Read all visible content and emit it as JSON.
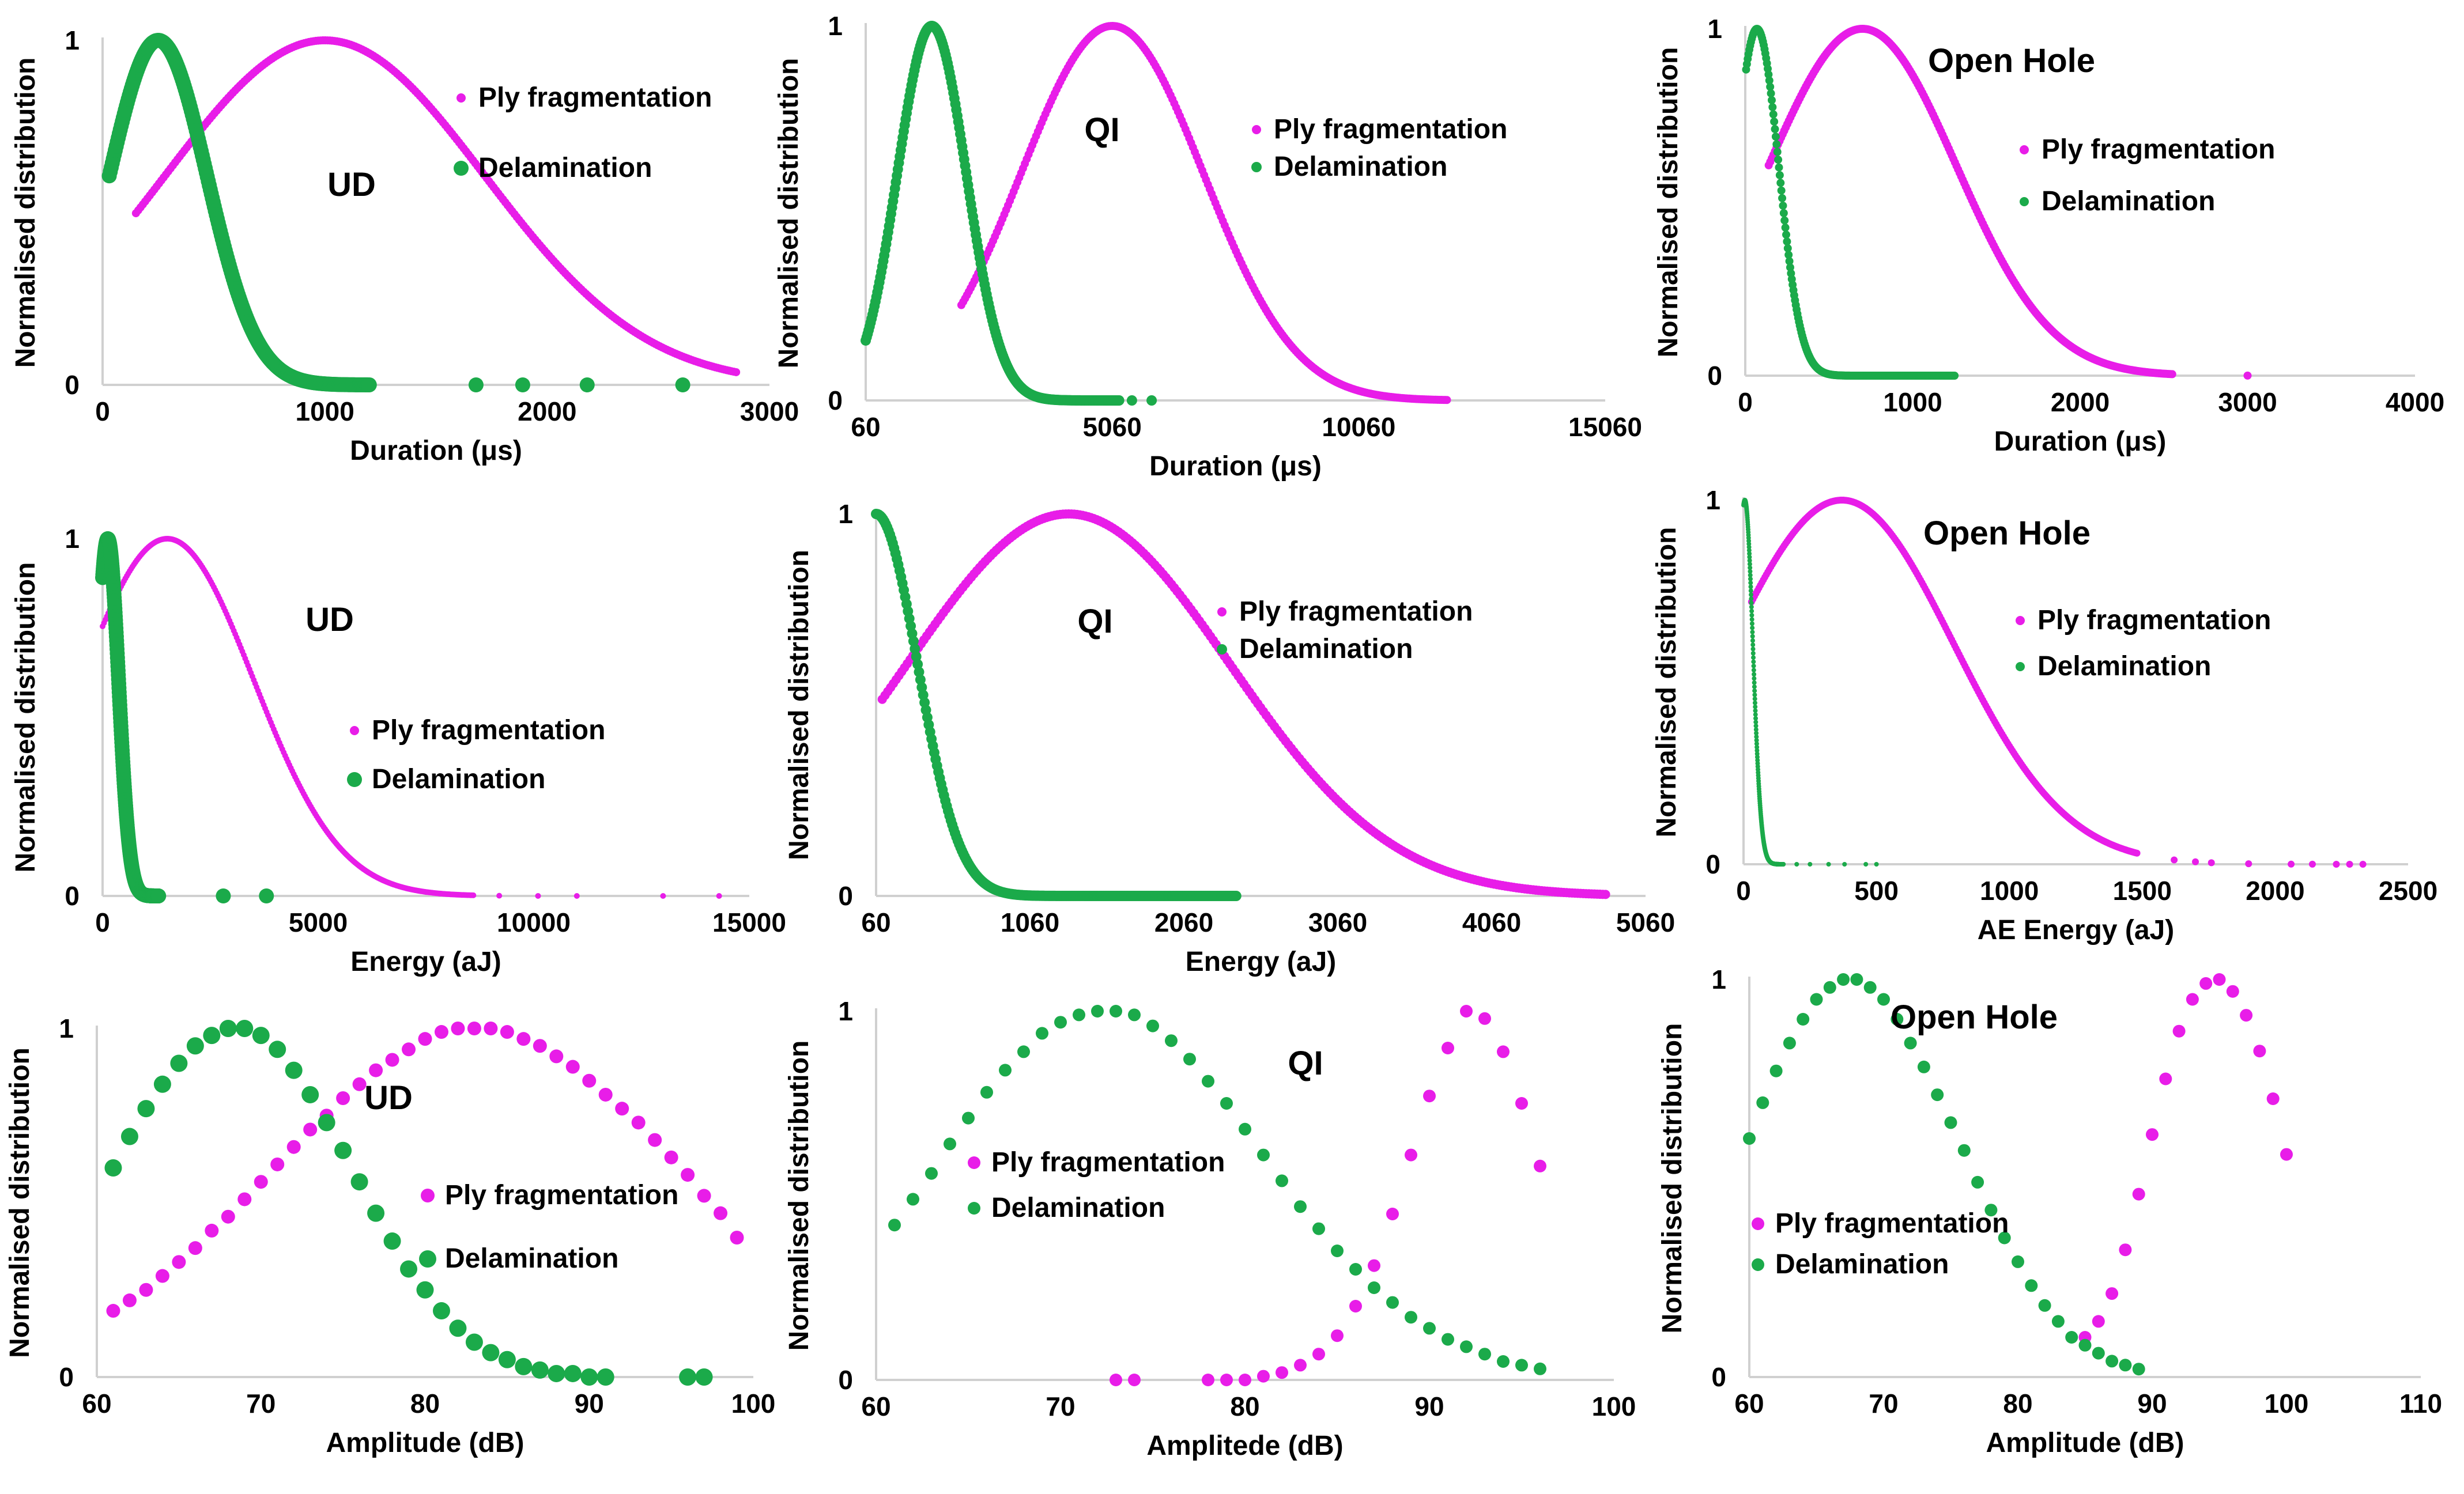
{
  "colors": {
    "ply": "#E81DE8",
    "delam": "#1BAA4A"
  },
  "chart_data": [
    {
      "type": "scatter",
      "annotation": "UD",
      "xlabel": "Duration (μs)",
      "ylabel": "Normalised distribution",
      "xlim": [
        0,
        3000
      ],
      "xticks": [
        "0",
        "1000",
        "2000",
        "3000"
      ],
      "xtick_values": [
        0,
        1000,
        2000,
        3000
      ],
      "ylim": [
        0,
        1
      ],
      "yticks": [
        "0",
        "1"
      ],
      "legend": [
        "Ply fragmentation",
        "Delamination"
      ],
      "series": [
        {
          "name": "Ply fragmentation",
          "kind": "gauss",
          "mu": 1000,
          "sigma": 720,
          "xmin": 150,
          "xmax": 2850
        },
        {
          "name": "Delamination",
          "kind": "gauss",
          "mu": 250,
          "sigma": 220,
          "xmin": 30,
          "xmax": 1200,
          "extra_x": [
            1680,
            1890,
            2180,
            2610
          ]
        }
      ]
    },
    {
      "type": "scatter",
      "annotation": "QI",
      "xlabel": "Duration (μs)",
      "ylabel": "Normalised distribution",
      "xlim": [
        60,
        15060
      ],
      "xticks": [
        "60",
        "5060",
        "10060",
        "15060"
      ],
      "xtick_values": [
        60,
        5060,
        10060,
        15060
      ],
      "ylim": [
        0,
        1
      ],
      "yticks": [
        "0",
        "1"
      ],
      "legend": [
        "Ply fragmentation",
        "Delamination"
      ],
      "series": [
        {
          "name": "Ply fragmentation",
          "kind": "gauss",
          "mu": 5060,
          "sigma": 1850,
          "xmin": 2000,
          "xmax": 11850
        },
        {
          "name": "Delamination",
          "kind": "gauss",
          "mu": 1400,
          "sigma": 700,
          "xmin": 60,
          "xmax": 5200,
          "extra_x": [
            5460,
            5860
          ]
        }
      ]
    },
    {
      "type": "scatter",
      "annotation": "Open Hole",
      "xlabel": "Duration (μs)",
      "ylabel": "Normalised distribution",
      "xlim": [
        0,
        4000
      ],
      "xticks": [
        "0",
        "1000",
        "2000",
        "3000",
        "4000"
      ],
      "xtick_values": [
        0,
        1000,
        2000,
        3000,
        4000
      ],
      "ylim": [
        0,
        1
      ],
      "yticks": [
        "0",
        "1"
      ],
      "legend": [
        "Ply fragmentation",
        "Delamination"
      ],
      "series": [
        {
          "name": "Ply fragmentation",
          "kind": "gauss",
          "mu": 700,
          "sigma": 560,
          "xmin": 140,
          "xmax": 2550,
          "extra_x": [
            3000
          ]
        },
        {
          "name": "Delamination",
          "kind": "gauss",
          "mu": 70,
          "sigma": 130,
          "xmin": 5,
          "xmax": 1250
        }
      ]
    },
    {
      "type": "scatter",
      "annotation": "UD",
      "xlabel": "Energy (aJ)",
      "ylabel": "Normalised distribution",
      "xlim": [
        0,
        15000
      ],
      "xticks": [
        "0",
        "5000",
        "10000",
        "15000"
      ],
      "xtick_values": [
        0,
        5000,
        10000,
        15000
      ],
      "ylim": [
        0,
        1
      ],
      "yticks": [
        "0",
        "1"
      ],
      "legend": [
        "Ply fragmentation",
        "Delamination"
      ],
      "series": [
        {
          "name": "Ply fragmentation",
          "kind": "gauss",
          "mu": 1500,
          "sigma": 2000,
          "xmin": 0,
          "xmax": 8600,
          "extra_x": [
            9200,
            10100,
            11000,
            13000,
            14300
          ]
        },
        {
          "name": "Delamination",
          "kind": "gauss",
          "mu": 120,
          "sigma": 250,
          "xmin": 0,
          "xmax": 1300,
          "extra_x": [
            2800,
            3800
          ]
        }
      ]
    },
    {
      "type": "scatter",
      "annotation": "QI",
      "xlabel": "Energy (aJ)",
      "ylabel": "Normalised distribution",
      "xlim": [
        60,
        5060
      ],
      "xticks": [
        "60",
        "1060",
        "2060",
        "3060",
        "4060",
        "5060"
      ],
      "xtick_values": [
        60,
        1060,
        2060,
        3060,
        4060,
        5060
      ],
      "ylim": [
        0,
        1
      ],
      "yticks": [
        "0",
        "1"
      ],
      "legend": [
        "Ply fragmentation",
        "Delamination"
      ],
      "series": [
        {
          "name": "Ply fragmentation",
          "kind": "gauss",
          "mu": 1310,
          "sigma": 1050,
          "xmin": 100,
          "xmax": 4800
        },
        {
          "name": "Delamination",
          "kind": "gauss",
          "mu": 60,
          "sigma": 270,
          "xmin": 60,
          "xmax": 2400
        }
      ]
    },
    {
      "type": "scatter",
      "annotation": "Open Hole",
      "xlabel": "AE Energy (aJ)",
      "ylabel": "Normalised distribution",
      "xlim": [
        0,
        2500
      ],
      "xticks": [
        "0",
        "500",
        "1000",
        "1500",
        "2000",
        "2500"
      ],
      "xtick_values": [
        0,
        500,
        1000,
        1500,
        2000,
        2500
      ],
      "ylim": [
        0,
        1
      ],
      "yticks": [
        "0",
        "1"
      ],
      "legend": [
        "Ply fragmentation",
        "Delamination"
      ],
      "series": [
        {
          "name": "Ply fragmentation",
          "kind": "gauss",
          "mu": 370,
          "sigma": 420,
          "xmin": 30,
          "xmax": 1480,
          "extra_x": [
            1620,
            1700,
            1760,
            1900,
            2060,
            2140,
            2230,
            2280,
            2330
          ]
        },
        {
          "name": "Delamination",
          "kind": "gauss",
          "mu": 5,
          "sigma": 30,
          "xmin": 0,
          "xmax": 150,
          "extra_x": [
            200,
            250,
            320,
            380,
            460,
            500
          ]
        }
      ]
    },
    {
      "type": "scatter",
      "annotation": "UD",
      "xlabel": "Amplitude (dB)",
      "ylabel": "Normalised distribution",
      "xlim": [
        60,
        100
      ],
      "xticks": [
        "60",
        "70",
        "80",
        "90",
        "100"
      ],
      "xtick_values": [
        60,
        70,
        80,
        90,
        100
      ],
      "ylim": [
        0,
        1
      ],
      "yticks": [
        "0",
        "1"
      ],
      "legend": [
        "Ply fragmentation",
        "Delamination"
      ],
      "series": [
        {
          "name": "Ply fragmentation",
          "kind": "points",
          "x": [
            61,
            62,
            63,
            64,
            65,
            66,
            67,
            68,
            69,
            70,
            71,
            72,
            73,
            74,
            75,
            76,
            77,
            78,
            79,
            80,
            81,
            82,
            83,
            84,
            85,
            86,
            87,
            88,
            89,
            90,
            91,
            92,
            93,
            94,
            95,
            96,
            97,
            98,
            99
          ],
          "y": [
            0.19,
            0.22,
            0.25,
            0.29,
            0.33,
            0.37,
            0.42,
            0.46,
            0.51,
            0.56,
            0.61,
            0.66,
            0.71,
            0.75,
            0.8,
            0.84,
            0.88,
            0.91,
            0.94,
            0.97,
            0.99,
            1.0,
            1.0,
            1.0,
            0.99,
            0.97,
            0.95,
            0.92,
            0.89,
            0.85,
            0.81,
            0.77,
            0.73,
            0.68,
            0.63,
            0.58,
            0.52,
            0.47,
            0.4
          ]
        },
        {
          "name": "Delamination",
          "kind": "points",
          "x": [
            61,
            62,
            63,
            64,
            65,
            66,
            67,
            68,
            69,
            70,
            71,
            72,
            73,
            74,
            75,
            76,
            77,
            78,
            79,
            80,
            81,
            82,
            83,
            84,
            85,
            86,
            87,
            88,
            89,
            90,
            91,
            96,
            97
          ],
          "y": [
            0.6,
            0.69,
            0.77,
            0.84,
            0.9,
            0.95,
            0.98,
            1.0,
            1.0,
            0.98,
            0.94,
            0.88,
            0.81,
            0.73,
            0.65,
            0.56,
            0.47,
            0.39,
            0.31,
            0.25,
            0.19,
            0.14,
            0.1,
            0.07,
            0.05,
            0.03,
            0.02,
            0.01,
            0.01,
            0.0,
            0.0,
            0.0,
            0.0
          ]
        }
      ]
    },
    {
      "type": "scatter",
      "annotation": "QI",
      "xlabel": "Amplitede (dB)",
      "ylabel": "Normalised distribution",
      "xlim": [
        60,
        100
      ],
      "xticks": [
        "60",
        "70",
        "80",
        "90",
        "100"
      ],
      "xtick_values": [
        60,
        70,
        80,
        90,
        100
      ],
      "ylim": [
        0,
        1
      ],
      "yticks": [
        "0",
        "1"
      ],
      "legend": [
        "Ply fragmentation",
        "Delamination"
      ],
      "series": [
        {
          "name": "Ply fragmentation",
          "kind": "points",
          "x": [
            73,
            74,
            78,
            79,
            80,
            81,
            82,
            83,
            84,
            85,
            86,
            87,
            88,
            89,
            90,
            91,
            92,
            93,
            94,
            95,
            96
          ],
          "y": [
            0.0,
            0.0,
            0.0,
            0.0,
            0.0,
            0.01,
            0.02,
            0.04,
            0.07,
            0.12,
            0.2,
            0.31,
            0.45,
            0.61,
            0.77,
            0.9,
            1.0,
            0.98,
            0.89,
            0.75,
            0.58
          ]
        },
        {
          "name": "Delamination",
          "kind": "points",
          "x": [
            61,
            62,
            63,
            64,
            65,
            66,
            67,
            68,
            69,
            70,
            71,
            72,
            73,
            74,
            75,
            76,
            77,
            78,
            79,
            80,
            81,
            82,
            83,
            84,
            85,
            86,
            87,
            88,
            89,
            90,
            91,
            92,
            93,
            94,
            95,
            96
          ],
          "y": [
            0.42,
            0.49,
            0.56,
            0.64,
            0.71,
            0.78,
            0.84,
            0.89,
            0.94,
            0.97,
            0.99,
            1.0,
            1.0,
            0.99,
            0.96,
            0.92,
            0.87,
            0.81,
            0.75,
            0.68,
            0.61,
            0.54,
            0.47,
            0.41,
            0.35,
            0.3,
            0.25,
            0.21,
            0.17,
            0.14,
            0.11,
            0.09,
            0.07,
            0.05,
            0.04,
            0.03
          ]
        }
      ]
    },
    {
      "type": "scatter",
      "annotation": "Open Hole",
      "xlabel": "Amplitude (dB)",
      "ylabel": "Normalised distribution",
      "xlim": [
        60,
        110
      ],
      "xticks": [
        "60",
        "70",
        "80",
        "90",
        "100",
        "110"
      ],
      "xtick_values": [
        60,
        70,
        80,
        90,
        100,
        110
      ],
      "ylim": [
        0,
        1
      ],
      "yticks": [
        "0",
        "1"
      ],
      "legend": [
        "Ply fragmentation",
        "Delamination"
      ],
      "series": [
        {
          "name": "Ply fragmentation",
          "kind": "points",
          "x": [
            85,
            86,
            87,
            88,
            89,
            90,
            91,
            92,
            93,
            94,
            95,
            96,
            97,
            98,
            99,
            100
          ],
          "y": [
            0.1,
            0.14,
            0.21,
            0.32,
            0.46,
            0.61,
            0.75,
            0.87,
            0.95,
            0.99,
            1.0,
            0.97,
            0.91,
            0.82,
            0.7,
            0.56
          ]
        },
        {
          "name": "Delamination",
          "kind": "points",
          "x": [
            60,
            61,
            62,
            63,
            64,
            65,
            66,
            67,
            68,
            69,
            70,
            71,
            72,
            73,
            74,
            75,
            76,
            77,
            78,
            79,
            80,
            81,
            82,
            83,
            84,
            85,
            86,
            87,
            88,
            89
          ],
          "y": [
            0.6,
            0.69,
            0.77,
            0.84,
            0.9,
            0.95,
            0.98,
            1.0,
            1.0,
            0.98,
            0.95,
            0.9,
            0.84,
            0.78,
            0.71,
            0.64,
            0.57,
            0.49,
            0.42,
            0.35,
            0.29,
            0.23,
            0.18,
            0.14,
            0.1,
            0.08,
            0.06,
            0.04,
            0.03,
            0.02
          ]
        }
      ]
    }
  ]
}
